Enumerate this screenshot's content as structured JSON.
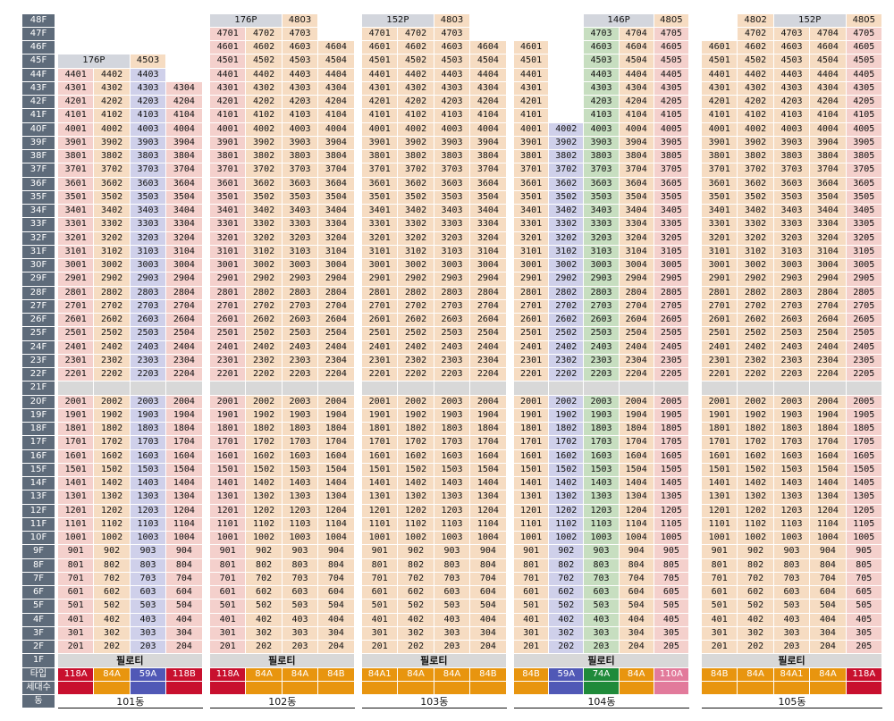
{
  "colors": {
    "floor_label": "#5e6b7a",
    "col_pink": "#f4d0cc",
    "col_peach": "#f6dcc2",
    "col_lavender": "#cfd0ea",
    "col_green": "#c7dec0",
    "gap": "#d8d8d8",
    "type_118A": "#c8102e",
    "type_118B": "#c8102e",
    "type_84A": "#e8950f",
    "type_84A1": "#e8950f",
    "type_84B": "#e8950f",
    "type_59A": "#5058b6",
    "type_74A": "#1f8a3a",
    "type_110A": "#e27a9b"
  },
  "row_labels": {
    "type": "타입",
    "households": "세대수",
    "building": "동"
  },
  "piloti_label": "필로티",
  "floors": [
    "48F",
    "47F",
    "46F",
    "45F",
    "44F",
    "43F",
    "42F",
    "41F",
    "40F",
    "39F",
    "38F",
    "37F",
    "36F",
    "35F",
    "34F",
    "33F",
    "32F",
    "31F",
    "30F",
    "29F",
    "28F",
    "27F",
    "26F",
    "25F",
    "24F",
    "23F",
    "22F",
    "21F",
    "20F",
    "19F",
    "18F",
    "17F",
    "16F",
    "15F",
    "14F",
    "13F",
    "12F",
    "11F",
    "10F",
    "9F",
    "8F",
    "7F",
    "6F",
    "5F",
    "4F",
    "3F",
    "2F",
    "1F"
  ],
  "buildings": [
    {
      "name": "101동",
      "columns": [
        {
          "line": "01",
          "type": "118A",
          "color": "pink",
          "top": 44
        },
        {
          "line": "02",
          "type": "84A",
          "color": "peach",
          "top": 44
        },
        {
          "line": "03",
          "type": "59A",
          "color": "lavender",
          "top": 44
        },
        {
          "line": "04",
          "type": "118B",
          "color": "pink",
          "top": 43
        }
      ],
      "headers": [
        {
          "text": "176P"
        },
        {
          "text": "4503"
        }
      ]
    },
    {
      "name": "102동",
      "columns": [
        {
          "line": "01",
          "type": "118A",
          "color": "pink",
          "top": 47
        },
        {
          "line": "02",
          "type": "84A",
          "color": "peach",
          "top": 47
        },
        {
          "line": "03",
          "type": "84A",
          "color": "peach",
          "top": 47
        },
        {
          "line": "04",
          "type": "84B",
          "color": "peach",
          "top": 46
        }
      ],
      "headers": [
        {
          "text": "176P"
        },
        {
          "text": "4803"
        }
      ]
    },
    {
      "name": "103동",
      "columns": [
        {
          "line": "01",
          "type": "84A1",
          "color": "peach",
          "top": 47
        },
        {
          "line": "02",
          "type": "84A",
          "color": "peach",
          "top": 47
        },
        {
          "line": "03",
          "type": "84A",
          "color": "peach",
          "top": 47
        },
        {
          "line": "04",
          "type": "84B",
          "color": "peach",
          "top": 46
        }
      ],
      "headers": [
        {
          "text": "152P"
        },
        {
          "text": "4803"
        }
      ]
    },
    {
      "name": "104동",
      "columns": [
        {
          "line": "01",
          "type": "84B",
          "color": "peach",
          "top": 46
        },
        {
          "line": "02",
          "type": "59A",
          "color": "lavender",
          "top": 40
        },
        {
          "line": "03",
          "type": "74A",
          "color": "green",
          "top": 47
        },
        {
          "line": "04",
          "type": "84A",
          "color": "peach",
          "top": 47
        },
        {
          "line": "05",
          "type": "110A",
          "color": "pink",
          "top": 47
        }
      ],
      "headers": [
        {
          "text": "146P"
        },
        {
          "text": "4805"
        }
      ]
    },
    {
      "name": "105동",
      "columns": [
        {
          "line": "01",
          "type": "84B",
          "color": "peach",
          "top": 46
        },
        {
          "line": "02",
          "type": "84A",
          "color": "peach",
          "top": 48
        },
        {
          "line": "03",
          "type": "84A1",
          "color": "peach",
          "top": 47
        },
        {
          "line": "04",
          "type": "84A",
          "color": "peach",
          "top": 47
        },
        {
          "line": "05",
          "type": "118A",
          "color": "pink",
          "top": 48
        }
      ],
      "headers": [
        {
          "text": "4802"
        },
        {
          "text": "152P"
        },
        {
          "text": "4805"
        }
      ]
    }
  ]
}
